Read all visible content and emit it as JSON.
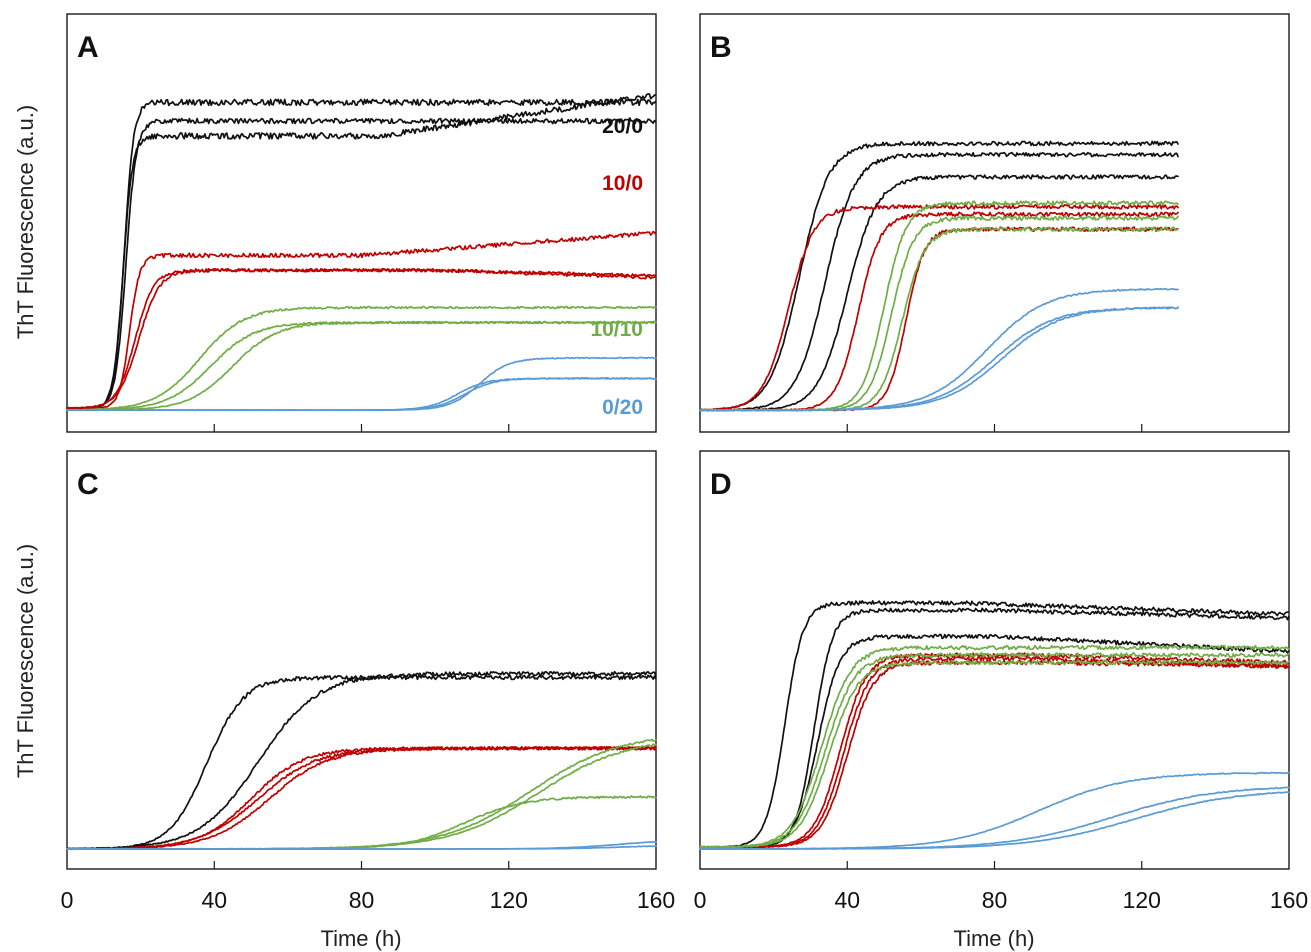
{
  "figure": {
    "ylabel": "ThT Fluorescence (a.u.)",
    "xlabel": "Time (h)"
  },
  "colors": {
    "20/0": "#111111",
    "10/0": "#c00000",
    "10/10": "#70ad47",
    "0/20": "#5b9bd5"
  },
  "chart_data": [
    {
      "type": "line",
      "panel": "A",
      "xlim": [
        0,
        160
      ],
      "ylim": [
        0,
        100
      ],
      "xticks": [
        0,
        40,
        80,
        120,
        160
      ],
      "x_tick_labels_shown": false,
      "series_labels": [
        {
          "text": "20/0",
          "color_key": "20/0"
        },
        {
          "text": "10/0",
          "color_key": "10/0"
        },
        {
          "text": "10/10",
          "color_key": "10/10"
        },
        {
          "text": "0/20",
          "color_key": "0/20"
        }
      ],
      "series": [
        {
          "group": "20/0",
          "t50": 15.5,
          "k": 1.3,
          "start": 1,
          "plateau": 83,
          "drift": 0,
          "noise": 0.6
        },
        {
          "group": "20/0",
          "t50": 15.2,
          "k": 1.3,
          "start": 1,
          "plateau": 74,
          "drift": 11,
          "drift_start": 85,
          "noise": 0.6
        },
        {
          "group": "20/0",
          "t50": 16.0,
          "k": 1.4,
          "start": 1,
          "plateau": 78,
          "drift": 0,
          "noise": 0.5
        },
        {
          "group": "10/0",
          "t50": 17.0,
          "k": 1.4,
          "start": 1,
          "plateau": 42,
          "drift": 6,
          "drift_start": 80,
          "noise": 0.4
        },
        {
          "group": "10/0",
          "t50": 18.5,
          "k": 2.5,
          "start": 1,
          "plateau": 38,
          "drift": -1.5,
          "drift_start": 100,
          "noise": 0.3
        },
        {
          "group": "10/0",
          "t50": 19.5,
          "k": 2.8,
          "start": 1,
          "plateau": 38,
          "drift": -2,
          "drift_start": 100,
          "noise": 0.3
        },
        {
          "group": "10/10",
          "t50": 36.0,
          "k": 6,
          "start": 0.5,
          "plateau": 28,
          "drift": 0,
          "noise": 0.2
        },
        {
          "group": "10/10",
          "t50": 39.0,
          "k": 6,
          "start": 0.5,
          "plateau": 24,
          "drift": 0,
          "noise": 0.2
        },
        {
          "group": "10/10",
          "t50": 45.0,
          "k": 6,
          "start": 0.5,
          "plateau": 24,
          "drift": 0,
          "noise": 0.2
        },
        {
          "group": "0/20",
          "t50": 112.0,
          "k": 4,
          "start": 0.5,
          "plateau": 14.5,
          "drift": 0,
          "noise": 0.1
        },
        {
          "group": "0/20",
          "t50": 106.0,
          "k": 4,
          "start": 0.5,
          "plateau": 9,
          "drift": 0,
          "noise": 0.1
        },
        {
          "group": "0/20",
          "t50": 108.0,
          "k": 4,
          "start": 0.5,
          "plateau": 9,
          "drift": 0,
          "noise": 0.1
        }
      ]
    },
    {
      "type": "line",
      "panel": "B",
      "xlim": [
        0,
        160
      ],
      "ylim": [
        0,
        100
      ],
      "x_end": 130,
      "xticks": [
        0,
        40,
        80,
        120,
        160
      ],
      "x_tick_labels_shown": false,
      "series": [
        {
          "group": "20/0",
          "t50": 27.0,
          "k": 4,
          "start": 0.5,
          "plateau": 72,
          "drift": 0,
          "noise": 0.4
        },
        {
          "group": "20/0",
          "t50": 34.0,
          "k": 4,
          "start": 0.5,
          "plateau": 69,
          "drift": 0,
          "noise": 0.4
        },
        {
          "group": "20/0",
          "t50": 40.0,
          "k": 4,
          "start": 0.5,
          "plateau": 63,
          "drift": 0,
          "noise": 0.4
        },
        {
          "group": "10/0",
          "t50": 24.0,
          "k": 3.5,
          "start": 0.5,
          "plateau": 55,
          "drift": 0,
          "noise": 0.4
        },
        {
          "group": "10/0",
          "t50": 43.0,
          "k": 3,
          "start": 0.5,
          "plateau": 53,
          "drift": 0,
          "noise": 0.4
        },
        {
          "group": "10/0",
          "t50": 56.0,
          "k": 2.5,
          "start": 0.5,
          "plateau": 49,
          "drift": 0,
          "noise": 0.4
        },
        {
          "group": "10/10",
          "t50": 50.0,
          "k": 3,
          "start": 0.5,
          "plateau": 56,
          "drift": 0,
          "noise": 0.4
        },
        {
          "group": "10/10",
          "t50": 52.0,
          "k": 3,
          "start": 0.5,
          "plateau": 52,
          "drift": 0,
          "noise": 0.4
        },
        {
          "group": "10/10",
          "t50": 55.0,
          "k": 3,
          "start": 0.5,
          "plateau": 49,
          "drift": 0,
          "noise": 0.4
        },
        {
          "group": "0/20",
          "t50": 78.0,
          "k": 8,
          "start": 0.5,
          "plateau": 33,
          "drift": 0,
          "noise": 0.15
        },
        {
          "group": "0/20",
          "t50": 80.0,
          "k": 8,
          "start": 0.5,
          "plateau": 28,
          "drift": 0,
          "noise": 0.15
        },
        {
          "group": "0/20",
          "t50": 82.0,
          "k": 8,
          "start": 0.5,
          "plateau": 28,
          "drift": 0,
          "noise": 0.15
        }
      ]
    },
    {
      "type": "line",
      "panel": "C",
      "xlim": [
        0,
        160
      ],
      "ylim": [
        0,
        100
      ],
      "xticks": [
        0,
        40,
        80,
        120,
        160
      ],
      "x_tick_labels_shown": true,
      "series": [
        {
          "group": "20/0",
          "t50": 38.0,
          "k": 5,
          "start": 0,
          "plateau": 46,
          "drift": 0,
          "noise": 0.4
        },
        {
          "group": "20/0",
          "t50": 52.0,
          "k": 8,
          "start": 0,
          "plateau": 47,
          "drift": 0,
          "noise": 0.4
        },
        {
          "group": "10/0",
          "t50": 50.0,
          "k": 7,
          "start": 0,
          "plateau": 27,
          "drift": 0,
          "noise": 0.3
        },
        {
          "group": "10/0",
          "t50": 52.0,
          "k": 8,
          "start": 0,
          "plateau": 27,
          "drift": 0,
          "noise": 0.3
        },
        {
          "group": "10/0",
          "t50": 55.0,
          "k": 8,
          "start": 0,
          "plateau": 27,
          "drift": 0,
          "noise": 0.3
        },
        {
          "group": "10/10",
          "t50": 126.0,
          "k": 12,
          "start": 0,
          "plateau": 31,
          "drift": 0,
          "noise": 0.2
        },
        {
          "group": "10/10",
          "t50": 128.0,
          "k": 12,
          "start": 0,
          "plateau": 30,
          "drift": 0,
          "noise": 0.2
        },
        {
          "group": "10/10",
          "t50": 108.0,
          "k": 8,
          "start": 0,
          "plateau": 14,
          "drift": 0,
          "noise": 0.2
        },
        {
          "group": "0/20",
          "t50": 150.0,
          "k": 8,
          "start": 0,
          "plateau": 2.5,
          "drift": 0,
          "noise": 0.05
        },
        {
          "group": "0/20",
          "t50": 150.0,
          "k": 8,
          "start": 0,
          "plateau": 1,
          "drift": 0,
          "noise": 0.05
        }
      ]
    },
    {
      "type": "line",
      "panel": "D",
      "xlim": [
        0,
        160
      ],
      "ylim": [
        0,
        100
      ],
      "xticks": [
        0,
        40,
        80,
        120,
        160
      ],
      "x_tick_labels_shown": true,
      "series": [
        {
          "group": "20/0",
          "t50": 23.0,
          "k": 2.5,
          "start": 0.5,
          "plateau": 66,
          "drift": -3,
          "drift_start": 70,
          "noise": 0.4
        },
        {
          "group": "20/0",
          "t50": 31.0,
          "k": 2.5,
          "start": 0.5,
          "plateau": 64,
          "drift": -2,
          "drift_start": 80,
          "noise": 0.4
        },
        {
          "group": "20/0",
          "t50": 32.0,
          "k": 3,
          "start": 0.5,
          "plateau": 57,
          "drift": -4,
          "drift_start": 80,
          "noise": 0.4
        },
        {
          "group": "10/0",
          "t50": 38.0,
          "k": 3.5,
          "start": 0.5,
          "plateau": 52,
          "drift": -2,
          "drift_start": 90,
          "noise": 0.4
        },
        {
          "group": "10/0",
          "t50": 39.0,
          "k": 3.5,
          "start": 0.5,
          "plateau": 51,
          "drift": -2,
          "drift_start": 90,
          "noise": 0.4
        },
        {
          "group": "10/0",
          "t50": 40.0,
          "k": 3.5,
          "start": 0.5,
          "plateau": 50,
          "drift": -1,
          "drift_start": 90,
          "noise": 0.4
        },
        {
          "group": "10/10",
          "t50": 33.0,
          "k": 4,
          "start": 0.5,
          "plateau": 54,
          "drift": 0,
          "noise": 0.4
        },
        {
          "group": "10/10",
          "t50": 34.0,
          "k": 4,
          "start": 0.5,
          "plateau": 52,
          "drift": 0,
          "noise": 0.4
        },
        {
          "group": "10/10",
          "t50": 35.0,
          "k": 4,
          "start": 0.5,
          "plateau": 50,
          "drift": 0,
          "noise": 0.4
        },
        {
          "group": "0/20",
          "t50": 92.0,
          "k": 12,
          "start": 0,
          "plateau": 20.5,
          "drift": 0,
          "noise": 0.1
        },
        {
          "group": "0/20",
          "t50": 112.0,
          "k": 14,
          "start": 0,
          "plateau": 17,
          "drift": 0,
          "noise": 0.1
        },
        {
          "group": "0/20",
          "t50": 118.0,
          "k": 14,
          "start": 0,
          "plateau": 16,
          "drift": 0,
          "noise": 0.1
        }
      ]
    }
  ]
}
